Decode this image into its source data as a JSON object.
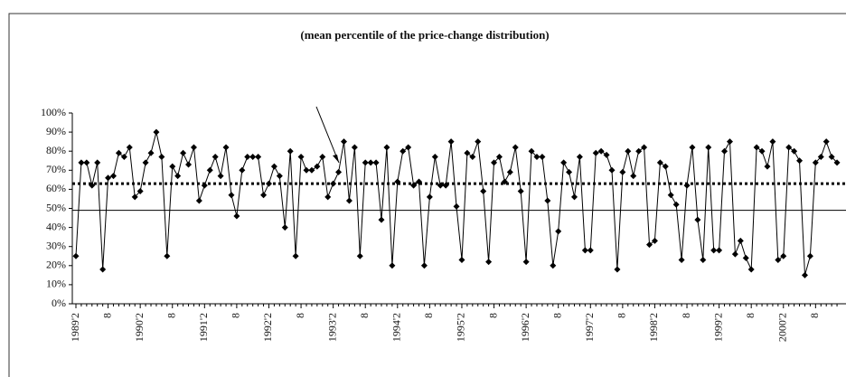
{
  "chart_data": {
    "type": "line",
    "title": "(mean percentile of the price-change distribution)",
    "categories": [
      "1989'2",
      null,
      null,
      null,
      null,
      null,
      "8",
      null,
      null,
      null,
      null,
      null,
      "1990'2",
      null,
      null,
      null,
      null,
      null,
      "8",
      null,
      null,
      null,
      null,
      null,
      "1991'2",
      null,
      null,
      null,
      null,
      null,
      "8",
      null,
      null,
      null,
      null,
      null,
      "1992'2",
      null,
      null,
      null,
      null,
      null,
      "8",
      null,
      null,
      null,
      null,
      null,
      "1993'2",
      null,
      null,
      null,
      null,
      null,
      "8",
      null,
      null,
      null,
      null,
      null,
      "1994'2",
      null,
      null,
      null,
      null,
      null,
      "8",
      null,
      null,
      null,
      null,
      null,
      "1995'2",
      null,
      null,
      null,
      null,
      null,
      "8",
      null,
      null,
      null,
      null,
      null,
      "1996'2",
      null,
      null,
      null,
      null,
      null,
      "8",
      null,
      null,
      null,
      null,
      null,
      "1997'2",
      null,
      null,
      null,
      null,
      null,
      "8",
      null,
      null,
      null,
      null,
      null,
      "1998'2",
      null,
      null,
      null,
      null,
      null,
      "8",
      null,
      null,
      null,
      null,
      null,
      "1999'2",
      null,
      null,
      null,
      null,
      null,
      "8",
      null,
      null,
      null,
      null,
      null,
      "2000'2",
      null,
      null,
      null,
      null,
      null,
      "8",
      null,
      null,
      null,
      null
    ],
    "values": [
      25,
      74,
      74,
      62,
      74,
      18,
      66,
      67,
      79,
      77,
      82,
      56,
      59,
      74,
      79,
      90,
      77,
      25,
      72,
      67,
      79,
      73,
      82,
      54,
      62,
      70,
      77,
      67,
      82,
      57,
      46,
      70,
      77,
      77,
      77,
      57,
      63,
      72,
      67,
      40,
      80,
      25,
      77,
      70,
      70,
      72,
      77,
      56,
      63,
      69,
      85,
      54,
      82,
      25,
      74,
      74,
      74,
      44,
      82,
      20,
      64,
      80,
      82,
      62,
      64,
      20,
      56,
      77,
      62,
      62,
      85,
      51,
      23,
      79,
      77,
      85,
      59,
      22,
      74,
      77,
      64,
      69,
      82,
      59,
      22,
      80,
      77,
      77,
      54,
      20,
      38,
      74,
      69,
      56,
      77,
      28,
      28,
      79,
      80,
      78,
      70,
      18,
      69,
      80,
      67,
      80,
      82,
      31,
      33,
      74,
      72,
      57,
      52,
      23,
      62,
      82,
      44,
      23,
      82,
      28,
      28,
      80,
      85,
      26,
      33,
      24,
      18,
      82,
      80,
      72,
      85,
      23,
      25,
      82,
      80,
      75,
      15,
      25,
      74,
      77,
      85,
      77,
      74
    ],
    "color": "#000000",
    "ylim": [
      0,
      100
    ],
    "yticks": [
      {
        "value": 0,
        "label": "0%"
      },
      {
        "value": 10,
        "label": "10%"
      },
      {
        "value": 20,
        "label": "20%"
      },
      {
        "value": 30,
        "label": "30%"
      },
      {
        "value": 40,
        "label": "40%"
      },
      {
        "value": 50,
        "label": "50%"
      },
      {
        "value": 60,
        "label": "60%"
      },
      {
        "value": 70,
        "label": "70%"
      },
      {
        "value": 80,
        "label": "80%"
      },
      {
        "value": 90,
        "label": "90%"
      },
      {
        "value": 100,
        "label": "100%"
      }
    ],
    "reference_lines": [
      {
        "value": 63,
        "style": "dotted"
      },
      {
        "value": 49,
        "style": "solid"
      }
    ]
  }
}
